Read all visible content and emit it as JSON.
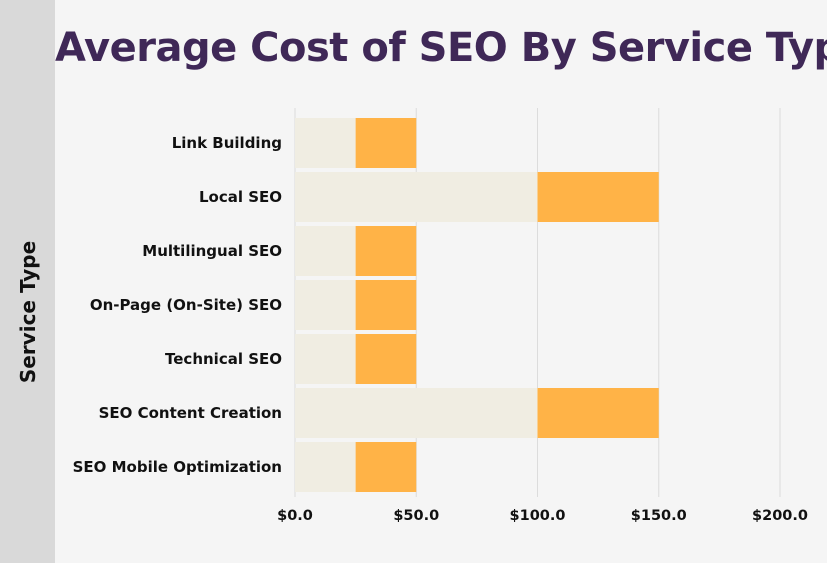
{
  "chart_data": {
    "type": "bar",
    "orientation": "horizontal",
    "stacked": true,
    "title": "Average Cost of SEO By Service Type",
    "ylabel": "Service Type",
    "xlabel": "",
    "categories": [
      "Link Building",
      "Local SEO",
      "Multilingual SEO",
      "On-Page (On-Site) SEO",
      "Technical SEO",
      "SEO Content Creation",
      "SEO Mobile Optimization"
    ],
    "series": [
      {
        "values": [
          25,
          100,
          25,
          25,
          25,
          100,
          25
        ]
      },
      {
        "values": [
          25,
          50,
          25,
          25,
          25,
          50,
          25
        ]
      }
    ],
    "xlim": [
      0,
      200
    ],
    "xticks": [
      "$0.0",
      "$50.0",
      "$100.0",
      "$150.0",
      "$200.0"
    ],
    "grid": true
  },
  "colors": {
    "background": "#f5f5f5",
    "side_strip": "#d9d9d9",
    "title": "#3f2857",
    "series": [
      "#f0ede2",
      "#ffb347"
    ],
    "gridline": "#dcdcdc"
  }
}
